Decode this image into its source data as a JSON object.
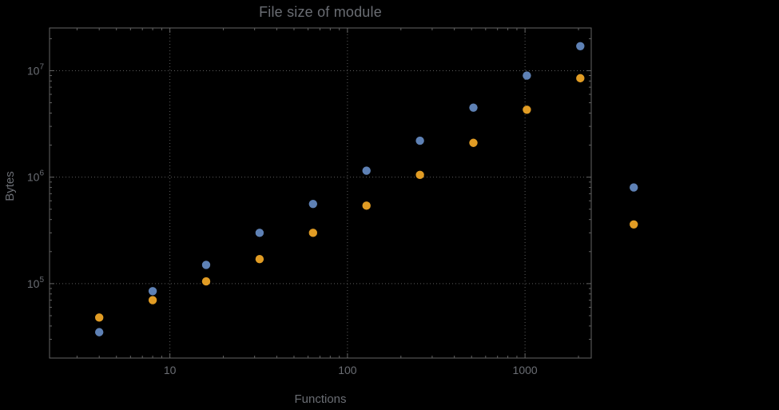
{
  "chart": {
    "title": "File size of module",
    "xlabel": "Functions",
    "ylabel": "Bytes",
    "colors": {
      "background": "#000000",
      "text": "#6a6d73",
      "frame": "#636363",
      "grid": "#5c5c5c",
      "series_blue": "#5e81b5",
      "series_orange": "#e19c24"
    }
  },
  "chart_data": {
    "type": "scatter",
    "title": "File size of module",
    "xlabel": "Functions",
    "ylabel": "Bytes",
    "x_scale": "log",
    "y_scale": "log",
    "grid": true,
    "legend": "none-visible",
    "xlim": [
      2.1,
      2360
    ],
    "ylim": [
      20000,
      25200000
    ],
    "x": [
      4,
      8,
      16,
      32,
      64,
      128,
      256,
      512,
      1024,
      2048,
      4096
    ],
    "series": [
      {
        "name": "blue",
        "color": "#5e81b5",
        "values": [
          35000,
          85000,
          150000,
          300000,
          560000,
          1150000,
          2200000,
          4500000,
          9000000,
          17000000,
          800000
        ]
      },
      {
        "name": "orange",
        "color": "#e19c24",
        "values": [
          48000,
          70000,
          105000,
          170000,
          300000,
          540000,
          1050000,
          2100000,
          4300000,
          8500000,
          360000
        ]
      }
    ],
    "x_ticks": [
      {
        "value": 10,
        "label": "10"
      },
      {
        "value": 100,
        "label": "100"
      },
      {
        "value": 1000,
        "label": "1000"
      }
    ],
    "y_ticks": [
      {
        "value": 100000,
        "base": "10",
        "exp": "5"
      },
      {
        "value": 1000000,
        "base": "10",
        "exp": "6"
      },
      {
        "value": 10000000,
        "base": "10",
        "exp": "7"
      }
    ]
  }
}
